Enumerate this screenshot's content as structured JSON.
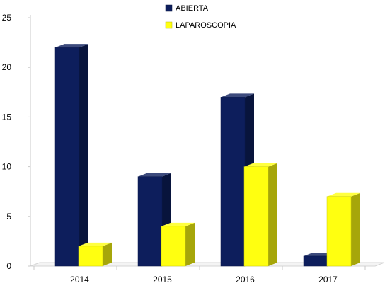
{
  "chart_data": {
    "type": "bar",
    "style": "3d-clustered-column",
    "categories": [
      "2014",
      "2015",
      "2016",
      "2017"
    ],
    "series": [
      {
        "name": "ABIERTA",
        "values": [
          22,
          9,
          17,
          1
        ],
        "color": "#0d1e5c"
      },
      {
        "name": "LAPAROSCOPIA",
        "values": [
          2,
          4,
          10,
          7
        ],
        "color": "#ffff10"
      }
    ],
    "yticks": [
      0,
      5,
      10,
      15,
      20,
      25
    ],
    "ylim": [
      0,
      25
    ],
    "title": "",
    "xlabel": "",
    "ylabel": "",
    "legend_position": "top-center",
    "grid": false
  }
}
